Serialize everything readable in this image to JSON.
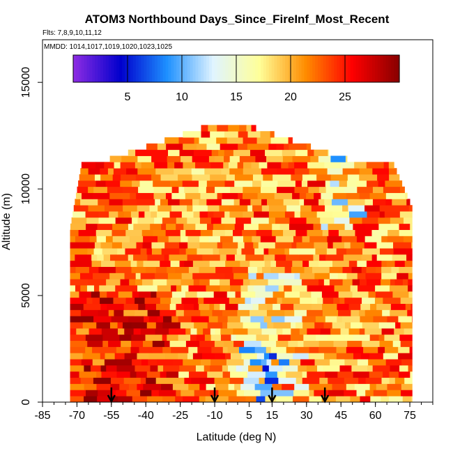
{
  "chart_data": {
    "type": "heatmap",
    "title": "ATOM3 Northbound Days_Since_FireInf_Most_Recent",
    "subtitle": "Flts: 7,8,9,10,11,12",
    "annotation": "MMDD: 1014,1017,1019,1020,1023,1025",
    "xlabel": "Latitude (deg N)",
    "ylabel": "Altitude (m)",
    "xlim": [
      -85,
      85
    ],
    "ylim": [
      0,
      17000
    ],
    "x_ticks": [
      -85,
      -70,
      -55,
      -40,
      -25,
      -10,
      5,
      15,
      30,
      45,
      60,
      75
    ],
    "y_ticks": [
      0,
      5000,
      10000,
      15000
    ],
    "colorbar": {
      "range": [
        0,
        30
      ],
      "ticks": [
        5,
        10,
        15,
        20,
        25
      ],
      "colors": [
        "#8a2be2",
        "#0000cd",
        "#1e90ff",
        "#e0f4ff",
        "#ffff99",
        "#ff8c00",
        "#ff0000",
        "#8b0000"
      ]
    },
    "profile_latitudes": [
      -55,
      -10,
      15,
      38
    ],
    "grid": false,
    "legend": "colorbar-top"
  }
}
